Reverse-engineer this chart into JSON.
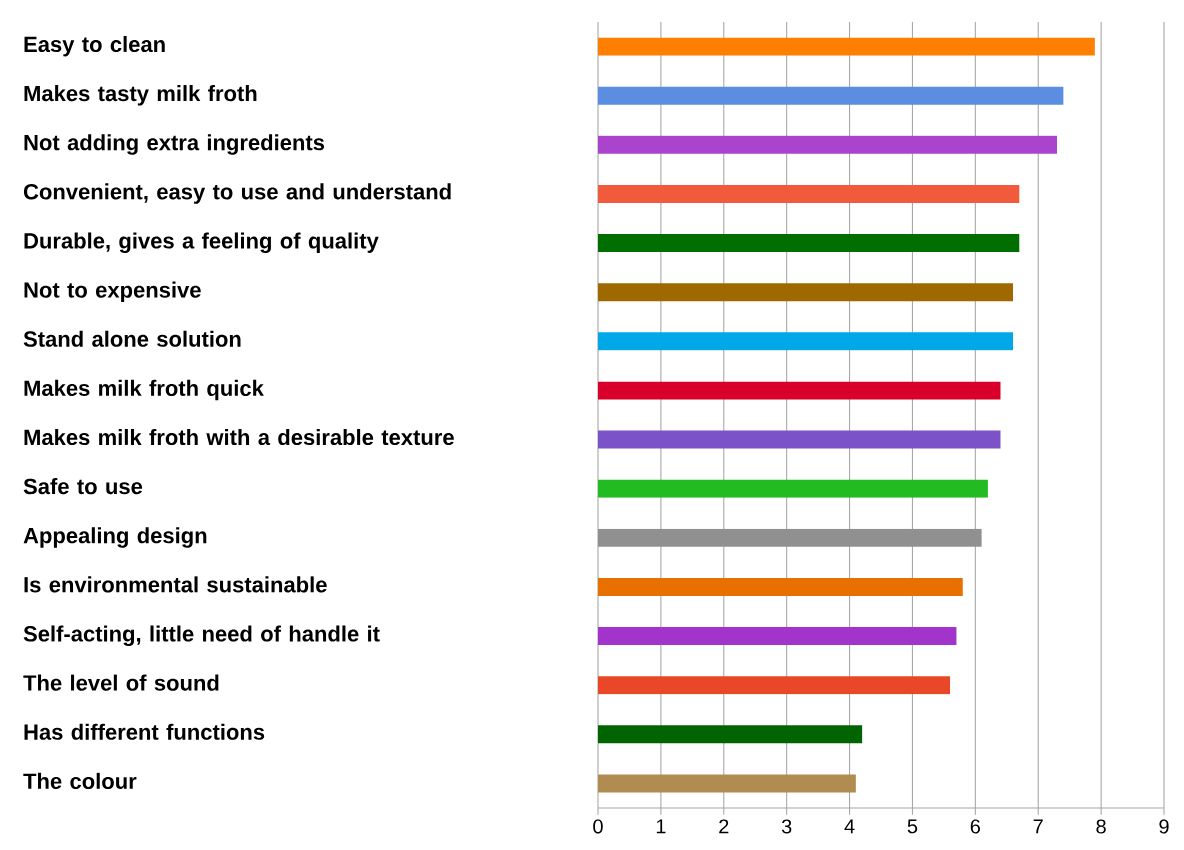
{
  "chart_data": {
    "type": "bar",
    "orientation": "horizontal",
    "categories": [
      "Easy to clean",
      "Makes tasty milk froth",
      "Not adding extra ingredients",
      "Convenient, easy to use and understand",
      "Durable, gives a feeling of quality",
      "Not to expensive",
      "Stand alone solution",
      "Makes milk froth quick",
      "Makes milk froth with a desirable texture",
      "Safe to use",
      "Appealing design",
      "Is environmental sustainable",
      "Self-acting, little need of handle it",
      "The level of sound",
      "Has different functions",
      "The colour"
    ],
    "values": [
      7.9,
      7.4,
      7.3,
      6.7,
      6.7,
      6.6,
      6.6,
      6.4,
      6.4,
      6.2,
      6.1,
      5.8,
      5.7,
      5.6,
      4.2,
      4.1
    ],
    "colors": [
      "#ff8000",
      "#5b8de0",
      "#aa44cc",
      "#f25a3c",
      "#006e00",
      "#a06800",
      "#00a8e8",
      "#d8002a",
      "#7b52c8",
      "#22bb22",
      "#909090",
      "#e87000",
      "#a234cc",
      "#e84828",
      "#006400",
      "#b08c50"
    ],
    "xlim": [
      0,
      9
    ],
    "xticks": [
      0,
      1,
      2,
      3,
      4,
      5,
      6,
      7,
      8,
      9
    ],
    "grid": "x"
  }
}
